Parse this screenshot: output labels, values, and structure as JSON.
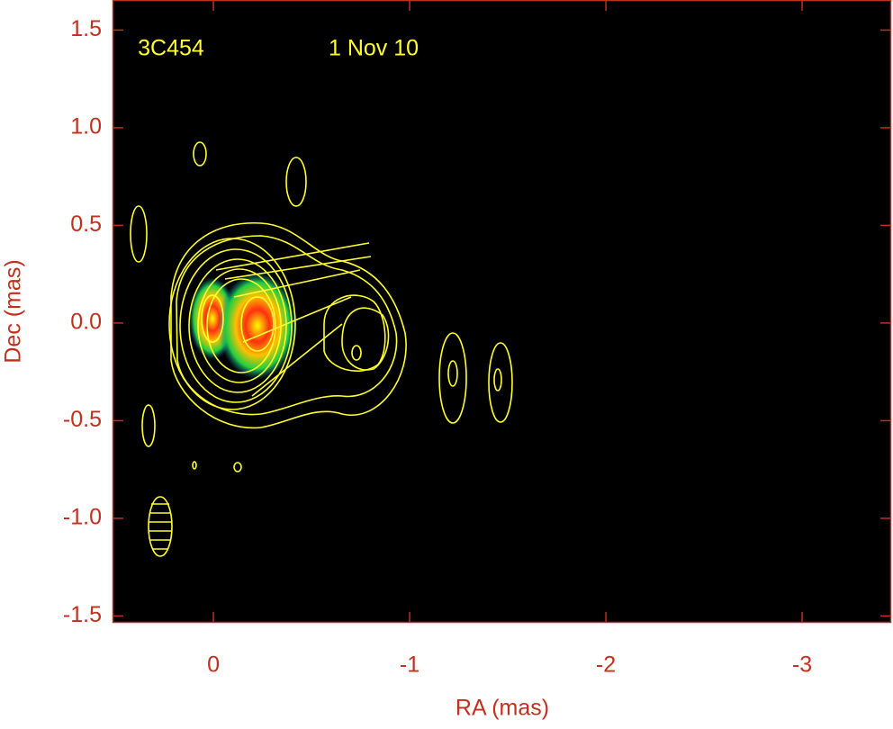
{
  "chart_data": {
    "type": "image",
    "annotations": [
      "3C454",
      "1 Nov 10"
    ],
    "x_label": "RA (mas)",
    "y_label": "Dec (mas)",
    "xlim": [
      0.514,
      -3.454
    ],
    "ylim": [
      -1.535,
      1.654
    ],
    "xticks": [
      0,
      -1,
      -2,
      -3
    ],
    "yticks": [
      1.5,
      {
        "value": 1,
        "label": "1.0"
      },
      0.5,
      {
        "value": 0,
        "label": "0.0"
      },
      -0.5,
      {
        "value": -1,
        "label": "-1.0"
      },
      -1.5
    ],
    "axis_color": "#c0301e",
    "contour_color": "#ffff30",
    "background": "#000000"
  }
}
